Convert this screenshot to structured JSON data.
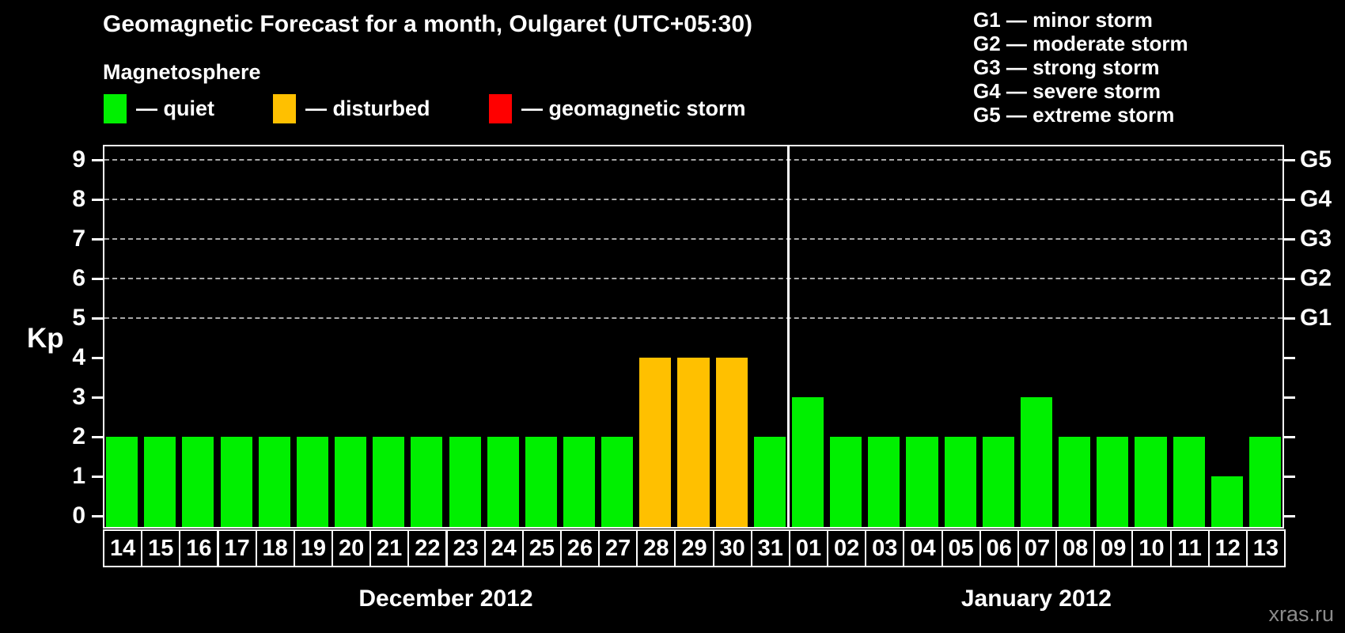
{
  "title": "Geomagnetic Forecast for a month, Oulgaret (UTC+05:30)",
  "separator": "—",
  "magnetosphere": {
    "heading": "Magnetosphere",
    "items": [
      {
        "state": "quiet",
        "label": "quiet",
        "color": "#00F000"
      },
      {
        "state": "disturbed",
        "label": "disturbed",
        "color": "#FFC000"
      },
      {
        "state": "storm",
        "label": "geomagnetic storm",
        "color": "#FF0000"
      }
    ]
  },
  "g_legend": [
    {
      "code": "G1",
      "label": "minor storm"
    },
    {
      "code": "G2",
      "label": "moderate storm"
    },
    {
      "code": "G3",
      "label": "strong storm"
    },
    {
      "code": "G4",
      "label": "severe storm"
    },
    {
      "code": "G5",
      "label": "extreme storm"
    }
  ],
  "watermark": "xras.ru",
  "chart_data": {
    "type": "bar",
    "ylabel": "Kp",
    "ylim": [
      0,
      9
    ],
    "yticks": [
      0,
      1,
      2,
      3,
      4,
      5,
      6,
      7,
      8,
      9
    ],
    "gridlines_at": [
      5,
      6,
      7,
      8,
      9
    ],
    "grid": "dashed horizontal at G-storm levels only",
    "legend_position": "top",
    "right_axis_labels": [
      {
        "kp": 5,
        "label": "G1"
      },
      {
        "kp": 6,
        "label": "G2"
      },
      {
        "kp": 7,
        "label": "G3"
      },
      {
        "kp": 8,
        "label": "G4"
      },
      {
        "kp": 9,
        "label": "G5"
      }
    ],
    "months": [
      {
        "label": "December 2012",
        "day_count": 18
      },
      {
        "label": "January 2012",
        "day_count": 13
      }
    ],
    "state_colors": {
      "quiet": "#00F000",
      "disturbed": "#FFC000",
      "storm": "#FF0000"
    },
    "bars": [
      {
        "day": "14",
        "month": "December 2012",
        "kp": 2,
        "state": "quiet"
      },
      {
        "day": "15",
        "month": "December 2012",
        "kp": 2,
        "state": "quiet"
      },
      {
        "day": "16",
        "month": "December 2012",
        "kp": 2,
        "state": "quiet"
      },
      {
        "day": "17",
        "month": "December 2012",
        "kp": 2,
        "state": "quiet"
      },
      {
        "day": "18",
        "month": "December 2012",
        "kp": 2,
        "state": "quiet"
      },
      {
        "day": "19",
        "month": "December 2012",
        "kp": 2,
        "state": "quiet"
      },
      {
        "day": "20",
        "month": "December 2012",
        "kp": 2,
        "state": "quiet"
      },
      {
        "day": "21",
        "month": "December 2012",
        "kp": 2,
        "state": "quiet"
      },
      {
        "day": "22",
        "month": "December 2012",
        "kp": 2,
        "state": "quiet"
      },
      {
        "day": "23",
        "month": "December 2012",
        "kp": 2,
        "state": "quiet"
      },
      {
        "day": "24",
        "month": "December 2012",
        "kp": 2,
        "state": "quiet"
      },
      {
        "day": "25",
        "month": "December 2012",
        "kp": 2,
        "state": "quiet"
      },
      {
        "day": "26",
        "month": "December 2012",
        "kp": 2,
        "state": "quiet"
      },
      {
        "day": "27",
        "month": "December 2012",
        "kp": 2,
        "state": "quiet"
      },
      {
        "day": "28",
        "month": "December 2012",
        "kp": 4,
        "state": "disturbed"
      },
      {
        "day": "29",
        "month": "December 2012",
        "kp": 4,
        "state": "disturbed"
      },
      {
        "day": "30",
        "month": "December 2012",
        "kp": 4,
        "state": "disturbed"
      },
      {
        "day": "31",
        "month": "December 2012",
        "kp": 2,
        "state": "quiet"
      },
      {
        "day": "01",
        "month": "January 2012",
        "kp": 3,
        "state": "quiet"
      },
      {
        "day": "02",
        "month": "January 2012",
        "kp": 2,
        "state": "quiet"
      },
      {
        "day": "03",
        "month": "January 2012",
        "kp": 2,
        "state": "quiet"
      },
      {
        "day": "04",
        "month": "January 2012",
        "kp": 2,
        "state": "quiet"
      },
      {
        "day": "05",
        "month": "January 2012",
        "kp": 2,
        "state": "quiet"
      },
      {
        "day": "06",
        "month": "January 2012",
        "kp": 2,
        "state": "quiet"
      },
      {
        "day": "07",
        "month": "January 2012",
        "kp": 3,
        "state": "quiet"
      },
      {
        "day": "08",
        "month": "January 2012",
        "kp": 2,
        "state": "quiet"
      },
      {
        "day": "09",
        "month": "January 2012",
        "kp": 2,
        "state": "quiet"
      },
      {
        "day": "10",
        "month": "January 2012",
        "kp": 2,
        "state": "quiet"
      },
      {
        "day": "11",
        "month": "January 2012",
        "kp": 2,
        "state": "quiet"
      },
      {
        "day": "12",
        "month": "January 2012",
        "kp": 1,
        "state": "quiet"
      },
      {
        "day": "13",
        "month": "January 2012",
        "kp": 2,
        "state": "quiet"
      }
    ]
  }
}
